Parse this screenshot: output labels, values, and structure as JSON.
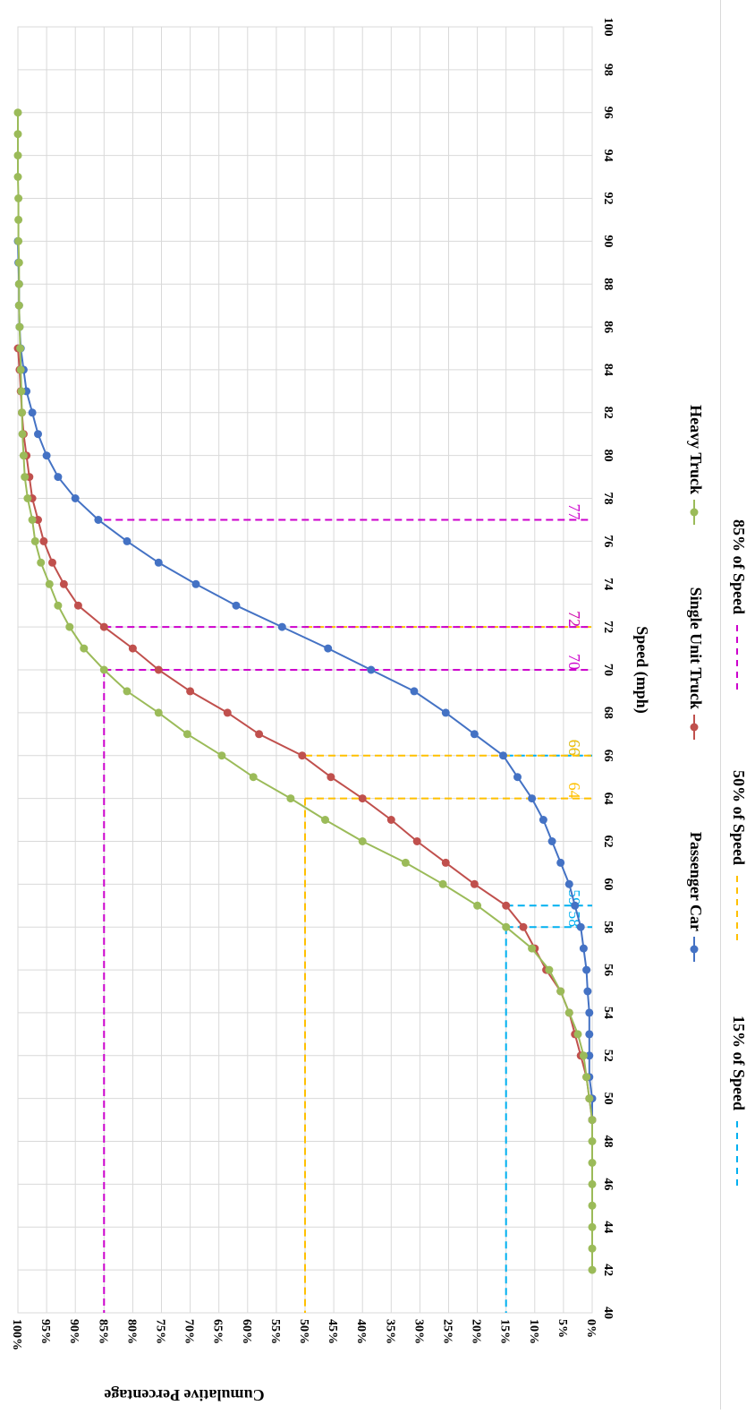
{
  "chart_data": {
    "type": "line",
    "orientation": "rotated 90 degrees clockwise",
    "xlabel": "Speed (mph)",
    "ylabel": "Cumulative Percentage",
    "xlim": [
      40,
      100
    ],
    "ylim": [
      0,
      100
    ],
    "x_ticks": [
      "40",
      "42",
      "44",
      "46",
      "48",
      "50",
      "52",
      "54",
      "56",
      "58",
      "60",
      "62",
      "64",
      "66",
      "68",
      "70",
      "72",
      "74",
      "76",
      "78",
      "80",
      "82",
      "84",
      "86",
      "88",
      "90",
      "92",
      "94",
      "96",
      "98",
      "100"
    ],
    "y_ticks": [
      "0%",
      "5%",
      "10%",
      "15%",
      "20%",
      "25%",
      "30%",
      "35%",
      "40%",
      "45%",
      "50%",
      "55%",
      "60%",
      "65%",
      "70%",
      "75%",
      "80%",
      "85%",
      "90%",
      "95%",
      "100%"
    ],
    "grid": true,
    "legend_position": "bottom",
    "series": [
      {
        "name": "Passenger Car",
        "color": "#4472c4",
        "points": [
          [
            49,
            0
          ],
          [
            50,
            0
          ],
          [
            51,
            0.5
          ],
          [
            52,
            0.5
          ],
          [
            53,
            0.5
          ],
          [
            54,
            0.5
          ],
          [
            55,
            0.8
          ],
          [
            56,
            1
          ],
          [
            57,
            1.5
          ],
          [
            58,
            2
          ],
          [
            59,
            3
          ],
          [
            60,
            4
          ],
          [
            61,
            5.5
          ],
          [
            62,
            7
          ],
          [
            63,
            8.5
          ],
          [
            64,
            10.5
          ],
          [
            65,
            13
          ],
          [
            66,
            15.5
          ],
          [
            67,
            20.5
          ],
          [
            68,
            25.5
          ],
          [
            69,
            31
          ],
          [
            70,
            38.5
          ],
          [
            71,
            46
          ],
          [
            72,
            54
          ],
          [
            73,
            62
          ],
          [
            74,
            69
          ],
          [
            75,
            75.5
          ],
          [
            76,
            81
          ],
          [
            77,
            86
          ],
          [
            78,
            90
          ],
          [
            79,
            93
          ],
          [
            80,
            95
          ],
          [
            81,
            96.5
          ],
          [
            82,
            97.5
          ],
          [
            83,
            98.5
          ],
          [
            84,
            99
          ],
          [
            85,
            99.5
          ],
          [
            86,
            99.7
          ],
          [
            87,
            99.8
          ],
          [
            88,
            99.8
          ],
          [
            89,
            99.9
          ],
          [
            90,
            100
          ]
        ]
      },
      {
        "name": "Single Unit Truck",
        "color": "#c0504d",
        "points": [
          [
            49,
            0
          ],
          [
            50,
            0.5
          ],
          [
            51,
            1
          ],
          [
            52,
            2
          ],
          [
            53,
            3
          ],
          [
            54,
            4
          ],
          [
            55,
            5.5
          ],
          [
            56,
            8
          ],
          [
            57,
            10
          ],
          [
            58,
            12
          ],
          [
            59,
            15
          ],
          [
            60,
            20.5
          ],
          [
            61,
            25.5
          ],
          [
            62,
            30.5
          ],
          [
            63,
            35
          ],
          [
            64,
            40
          ],
          [
            65,
            45.5
          ],
          [
            66,
            50.5
          ],
          [
            67,
            58
          ],
          [
            68,
            63.5
          ],
          [
            69,
            70
          ],
          [
            70,
            75.5
          ],
          [
            71,
            80
          ],
          [
            72,
            85
          ],
          [
            73,
            89.5
          ],
          [
            74,
            92
          ],
          [
            75,
            94
          ],
          [
            76,
            95.5
          ],
          [
            77,
            96.5
          ],
          [
            78,
            97.5
          ],
          [
            79,
            98
          ],
          [
            80,
            98.5
          ],
          [
            81,
            99
          ],
          [
            82,
            99.3
          ],
          [
            83,
            99.5
          ],
          [
            84,
            99.7
          ],
          [
            85,
            100
          ]
        ]
      },
      {
        "name": "Heavy Truck",
        "color": "#9bbb59",
        "points": [
          [
            42,
            0
          ],
          [
            43,
            0
          ],
          [
            44,
            0
          ],
          [
            45,
            0
          ],
          [
            46,
            0
          ],
          [
            47,
            0
          ],
          [
            48,
            0
          ],
          [
            49,
            0
          ],
          [
            50,
            0.5
          ],
          [
            51,
            1
          ],
          [
            52,
            1.5
          ],
          [
            53,
            2.5
          ],
          [
            54,
            4
          ],
          [
            55,
            5.5
          ],
          [
            56,
            7.5
          ],
          [
            57,
            10.5
          ],
          [
            58,
            15
          ],
          [
            59,
            20
          ],
          [
            60,
            26
          ],
          [
            61,
            32.5
          ],
          [
            62,
            40
          ],
          [
            63,
            46.5
          ],
          [
            64,
            52.5
          ],
          [
            65,
            59
          ],
          [
            66,
            64.5
          ],
          [
            67,
            70.5
          ],
          [
            68,
            75.5
          ],
          [
            69,
            81
          ],
          [
            70,
            85
          ],
          [
            71,
            88.5
          ],
          [
            72,
            91
          ],
          [
            73,
            93
          ],
          [
            74,
            94.5
          ],
          [
            75,
            96
          ],
          [
            76,
            97
          ],
          [
            77,
            97.5
          ],
          [
            78,
            98.3
          ],
          [
            79,
            98.8
          ],
          [
            80,
            99
          ],
          [
            81,
            99.2
          ],
          [
            82,
            99.3
          ],
          [
            83,
            99.4
          ],
          [
            84,
            99.5
          ],
          [
            85,
            99.6
          ],
          [
            86,
            99.7
          ],
          [
            87,
            99.8
          ],
          [
            88,
            99.8
          ],
          [
            89,
            99.8
          ],
          [
            90,
            99.9
          ],
          [
            91,
            99.9
          ],
          [
            92,
            99.9
          ],
          [
            93,
            100
          ],
          [
            94,
            100
          ],
          [
            95,
            100
          ],
          [
            96,
            100
          ]
        ]
      }
    ],
    "reference_lines": [
      {
        "name": "15% of Speed",
        "color": "#00b0f0",
        "y": 15,
        "x_values": [
          58,
          59,
          66
        ],
        "labels": [
          "58",
          "59",
          "66"
        ]
      },
      {
        "name": "50% of Speed",
        "color": "#ffc000",
        "y": 50,
        "x_values": [
          64,
          66,
          72
        ],
        "labels": [
          "64",
          "66",
          "72"
        ]
      },
      {
        "name": "85% of Speed",
        "color": "#cc00cc",
        "y": 85,
        "x_values": [
          70,
          72,
          77
        ],
        "labels": [
          "70",
          "72",
          "77"
        ]
      }
    ]
  }
}
